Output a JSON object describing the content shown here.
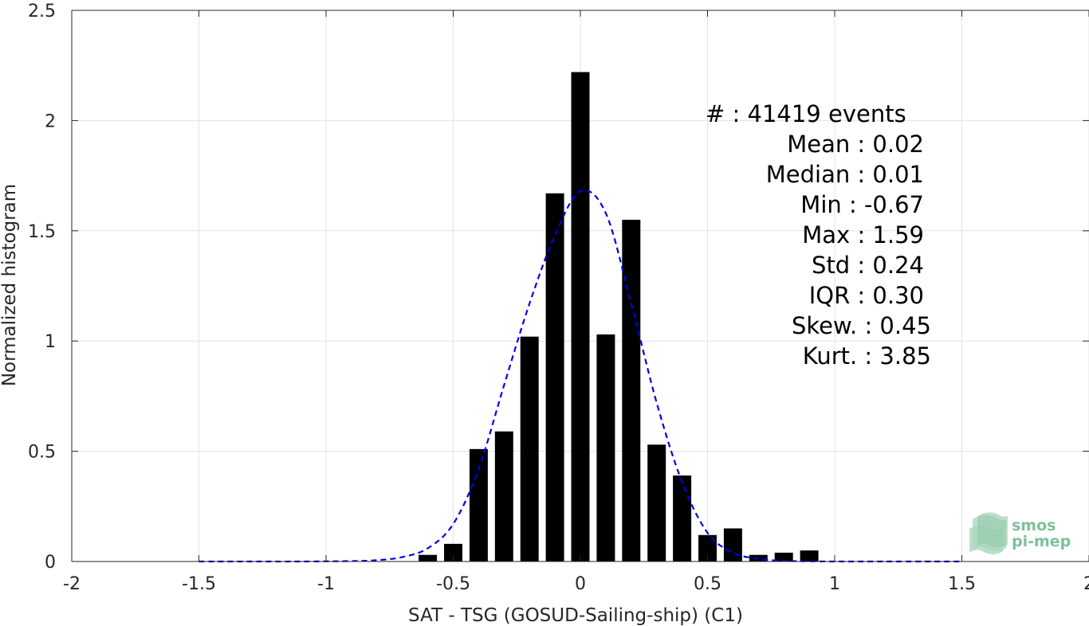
{
  "chart_data": {
    "type": "bar",
    "xlabel": "SAT - TSG (GOSUD-Sailing-ship) (C1)",
    "ylabel": "Normalized histogram",
    "xlim": [
      -2,
      2
    ],
    "ylim": [
      0,
      2.5
    ],
    "grid": true,
    "x_ticks": [
      "-2",
      "-1.5",
      "-1",
      "-0.5",
      "0",
      "0.5",
      "1",
      "1.5",
      "2"
    ],
    "y_ticks": [
      "0",
      "0.5",
      "1",
      "1.5",
      "2",
      "2.5"
    ],
    "bar_color": "#000000",
    "bars": {
      "x": [
        -0.6,
        -0.5,
        -0.4,
        -0.3,
        -0.2,
        -0.1,
        0.0,
        0.1,
        0.2,
        0.3,
        0.4,
        0.5,
        0.6,
        0.7,
        0.8,
        0.9
      ],
      "values": [
        0.03,
        0.08,
        0.51,
        0.59,
        1.02,
        1.67,
        2.22,
        1.03,
        1.55,
        0.53,
        0.39,
        0.12,
        0.15,
        0.03,
        0.04,
        0.05
      ]
    },
    "fit_curve": {
      "style": "dashed",
      "color": "#0000ee",
      "x": [
        -1.5,
        -1.3,
        -1.1,
        -0.9,
        -0.8,
        -0.7,
        -0.6,
        -0.5,
        -0.4,
        -0.3,
        -0.2,
        -0.1,
        0.0,
        0.1,
        0.2,
        0.3,
        0.4,
        0.5,
        0.6,
        0.7,
        0.8,
        0.9,
        1.0,
        1.2,
        1.5
      ],
      "values": [
        0.0,
        0.0,
        0.0,
        0.002,
        0.006,
        0.02,
        0.06,
        0.17,
        0.42,
        0.8,
        1.17,
        1.48,
        1.68,
        1.58,
        1.17,
        0.72,
        0.36,
        0.13,
        0.04,
        0.012,
        0.003,
        0.001,
        0.0,
        0.0,
        0.0
      ]
    },
    "stats": [
      "#  : 41419 events",
      "Mean : 0.02",
      "Median : 0.01",
      "Min : -0.67",
      "Max : 1.59",
      "Std : 0.24",
      "IQR : 0.30",
      "Skew. : 0.45",
      "Kurt. : 3.85"
    ]
  },
  "logo": {
    "line1": "smos",
    "line2": "pi-mep",
    "color": "#7fbf9a"
  }
}
